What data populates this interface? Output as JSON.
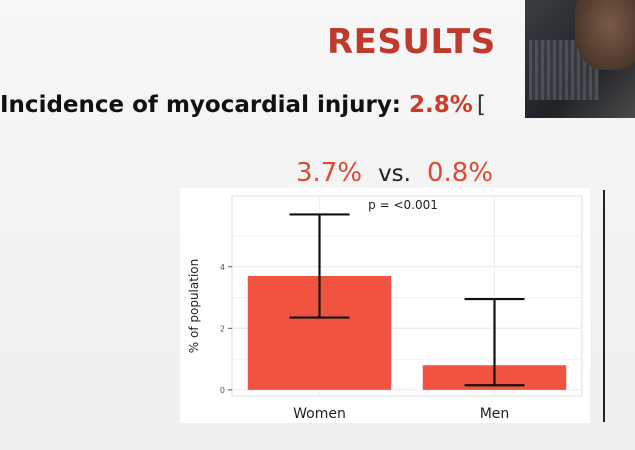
{
  "slide": {
    "title": "RESULTS",
    "headline_text": "Incidence of myocardial injury: ",
    "headline_value": "2.8%",
    "headline_bracket": "[",
    "comparison": {
      "left": "3.7%",
      "vs": "vs.",
      "right": "0.8%"
    }
  },
  "colors": {
    "accent": "#e04a33",
    "bar": "#f25340",
    "title": "#c0392b"
  },
  "chart_data": {
    "type": "bar",
    "categories": [
      "Women",
      "Men"
    ],
    "values": [
      3.7,
      0.8
    ],
    "error_low": [
      2.35,
      0.15
    ],
    "error_high": [
      5.7,
      2.95
    ],
    "annotation": "p = <0.001",
    "xlabel": "",
    "ylabel": "% of population",
    "ylim": [
      -0.2,
      6.3
    ],
    "yticks": [
      0,
      2,
      4
    ],
    "grid": true,
    "legend": "none"
  }
}
